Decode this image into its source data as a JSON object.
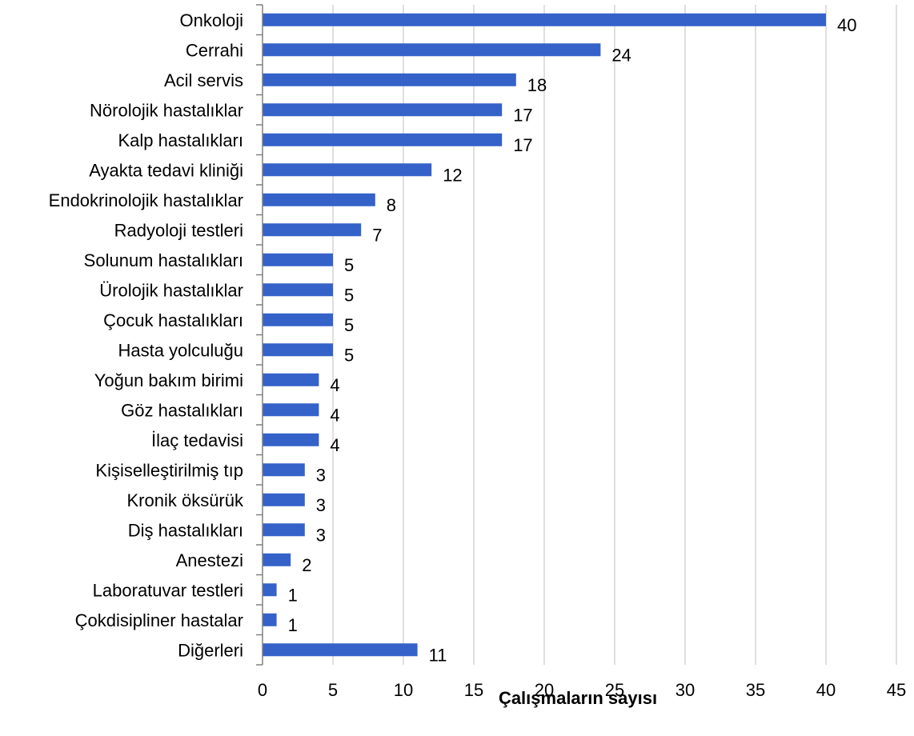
{
  "chart_data": {
    "type": "bar",
    "orientation": "horizontal",
    "categories": [
      "Onkoloji",
      "Cerrahi",
      "Acil servis ",
      "Nörolojik hastalıklar",
      "Kalp hastalıkları",
      "Ayakta tedavi kliniği",
      "Endokrinolojik hastalıklar",
      "Radyoloji testleri",
      "Solunum hastalıkları",
      "Ürolojik hastalıklar",
      "Çocuk hastalıkları",
      "Hasta yolculuğu",
      "Yoğun bakım birimi",
      "Göz hastalıkları",
      "İlaç tedavisi",
      "Kişiselleştirilmiş tıp",
      "Kronik öksürük",
      "Diş hastalıkları",
      "Anestezi",
      "Laboratuvar testleri",
      "Çokdisipliner hastalar",
      "Diğerleri"
    ],
    "values": [
      40,
      24,
      18,
      17,
      17,
      12,
      8,
      7,
      5,
      5,
      5,
      5,
      4,
      4,
      4,
      3,
      3,
      3,
      2,
      1,
      1,
      11
    ],
    "xlabel": "Çalışmaların sayısı",
    "ylabel": "",
    "xlim": [
      0,
      45
    ],
    "xticks": [
      0,
      5,
      10,
      15,
      20,
      25,
      30,
      35,
      40,
      45
    ],
    "grid": "vertical",
    "legend": "none",
    "data_labels": true,
    "bar_color": "#3462C8",
    "grid_color": "#BFBFBF",
    "axis_color": "#808080"
  }
}
